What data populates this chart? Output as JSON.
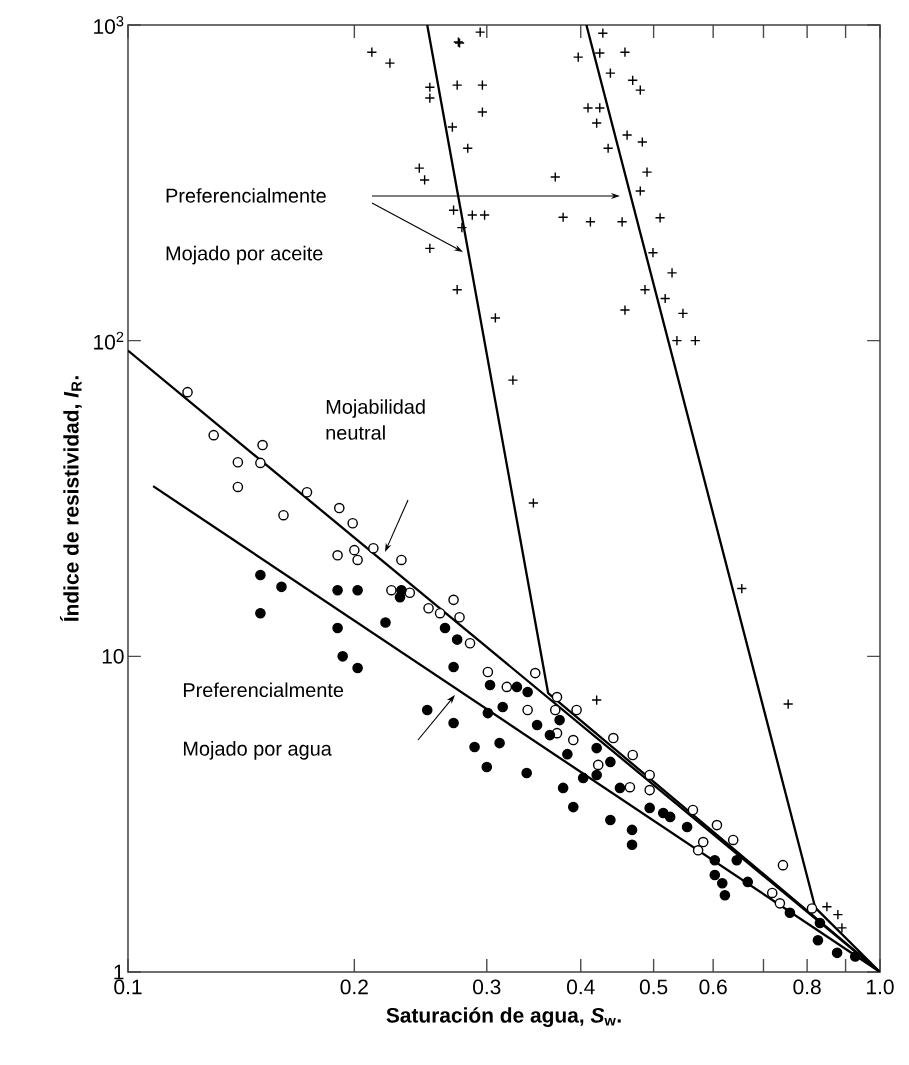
{
  "chart_data": {
    "type": "scatter",
    "xlabel": "Saturación de agua, *S*$_{w}$.",
    "ylabel": "Índice de resistividad, *I*$_{R}$.",
    "log": "xy",
    "xlim": [
      0.1,
      1.0
    ],
    "ylim": [
      1,
      1000
    ],
    "xticks": [
      0.1,
      0.2,
      0.3,
      0.4,
      0.5,
      0.6,
      {
        "value": 0.7,
        "label": null
      },
      0.8,
      {
        "value": 0.9,
        "label": null
      },
      {
        "value": 1,
        "label": "1.0"
      }
    ],
    "yticks": [
      1,
      10,
      {
        "value": 100,
        "label": "10$^{2}$"
      },
      {
        "value": 1000,
        "label": "10$^{3}$"
      }
    ],
    "series": [
      {
        "marker": "cross",
        "color": "#000000",
        "x": [
          0.211,
          0.223,
          0.252,
          0.252,
          0.275,
          0.274,
          0.283,
          0.244,
          0.248,
          0.271,
          0.278,
          0.252,
          0.274,
          0.294,
          0.276,
          0.296,
          0.296,
          0.27,
          0.287,
          0.298,
          0.308,
          0.325,
          0.346,
          0.428,
          0.397,
          0.424,
          0.458,
          0.438,
          0.469,
          0.48,
          0.409,
          0.424,
          0.42,
          0.461,
          0.483,
          0.435,
          0.49,
          0.37,
          0.48,
          0.379,
          0.412,
          0.454,
          0.51,
          0.499,
          0.529,
          0.487,
          0.518,
          0.458,
          0.547,
          0.537,
          0.568,
          0.42,
          0.655,
          0.755,
          0.85,
          0.879,
          0.89
        ],
        "values": [
          820,
          757,
          635,
          587,
          883,
          645,
          407,
          352,
          323,
          259,
          228,
          196,
          145,
          949,
          877,
          645,
          530,
          475,
          250,
          250,
          118,
          75,
          30.6,
          942,
          791,
          815,
          820,
          704,
          668,
          622,
          546,
          546,
          489,
          448,
          426,
          407,
          342,
          330,
          298,
          246,
          238,
          238,
          245,
          190,
          164,
          145,
          136,
          125,
          122,
          100,
          100,
          7.27,
          16.4,
          7.06,
          1.61,
          1.52,
          1.38
        ]
      },
      {
        "marker": "circle",
        "color": "#ffffff",
        "x": [
          0.12,
          0.13,
          0.151,
          0.14,
          0.15,
          0.14,
          0.173,
          0.161,
          0.191,
          0.199,
          0.19,
          0.2,
          0.202,
          0.212,
          0.231,
          0.224,
          0.237,
          0.251,
          0.26,
          0.271,
          0.276,
          0.285,
          0.301,
          0.319,
          0.348,
          0.34,
          0.372,
          0.37,
          0.372,
          0.395,
          0.391,
          0.442,
          0.422,
          0.469,
          0.494,
          0.465,
          0.494,
          0.564,
          0.607,
          0.582,
          0.573,
          0.638,
          0.719,
          0.743,
          0.736,
          0.812
        ],
        "values": [
          68.7,
          50.2,
          46.7,
          41.2,
          41.0,
          34.4,
          33.1,
          28.0,
          29.5,
          26.4,
          20.9,
          21.7,
          20.2,
          22.0,
          20.2,
          16.2,
          15.9,
          14.2,
          13.7,
          15.1,
          13.3,
          11.0,
          8.92,
          8.0,
          8.85,
          6.76,
          7.43,
          6.76,
          5.71,
          6.76,
          5.43,
          5.51,
          4.53,
          4.87,
          4.21,
          3.85,
          3.77,
          3.26,
          2.92,
          2.58,
          2.43,
          2.62,
          1.78,
          2.18,
          1.65,
          1.59
        ]
      },
      {
        "marker": "circle",
        "color": "#000000",
        "x": [
          0.15,
          0.16,
          0.15,
          0.19,
          0.202,
          0.19,
          0.193,
          0.202,
          0.22,
          0.231,
          0.23,
          0.264,
          0.274,
          0.271,
          0.25,
          0.271,
          0.289,
          0.303,
          0.329,
          0.34,
          0.301,
          0.315,
          0.312,
          0.3,
          0.339,
          0.35,
          0.364,
          0.375,
          0.384,
          0.379,
          0.391,
          0.403,
          0.42,
          0.42,
          0.438,
          0.438,
          0.468,
          0.468,
          0.451,
          0.494,
          0.515,
          0.526,
          0.554,
          0.603,
          0.603,
          0.617,
          0.622,
          0.645,
          0.667,
          0.759,
          0.827,
          0.877,
          0.832,
          0.927
        ],
        "values": [
          18.1,
          16.6,
          13.7,
          16.2,
          16.2,
          12.3,
          10.0,
          9.18,
          12.8,
          16.2,
          15.4,
          12.3,
          11.3,
          9.25,
          6.76,
          6.15,
          5.16,
          8.11,
          8.0,
          7.71,
          6.61,
          6.91,
          5.31,
          4.46,
          4.27,
          6.06,
          5.63,
          6.28,
          4.9,
          3.83,
          3.33,
          4.12,
          5.12,
          4.21,
          4.63,
          3.03,
          2.82,
          2.53,
          3.83,
          3.31,
          3.19,
          3.1,
          2.88,
          2.26,
          2.03,
          1.91,
          1.75,
          2.26,
          1.93,
          1.54,
          1.26,
          1.15,
          1.43,
          1.12
        ]
      },
      {
        "type": "line",
        "marker": "none",
        "color": "#000000",
        "x": [
          0.1,
          1.0
        ],
        "values": [
          93,
          1
        ]
      },
      {
        "type": "line",
        "marker": "none",
        "color": "#000000",
        "x": [
          0.108,
          1.0
        ],
        "values": [
          34.6,
          1
        ]
      },
      {
        "type": "line",
        "marker": "none",
        "color": "#000000",
        "x": [
          0.25,
          0.362,
          1.0
        ],
        "values": [
          1000,
          7.65,
          1
        ]
      },
      {
        "type": "line",
        "marker": "none",
        "color": "#000000",
        "x": [
          0.407,
          0.82,
          1.0
        ],
        "values": [
          1000,
          1.6,
          1
        ]
      }
    ],
    "annotations": [
      "Preferencialmente",
      "Mojado por aceite",
      "Mojabilidad neutral",
      "Preferencialmente",
      "Mojado por agua"
    ]
  }
}
